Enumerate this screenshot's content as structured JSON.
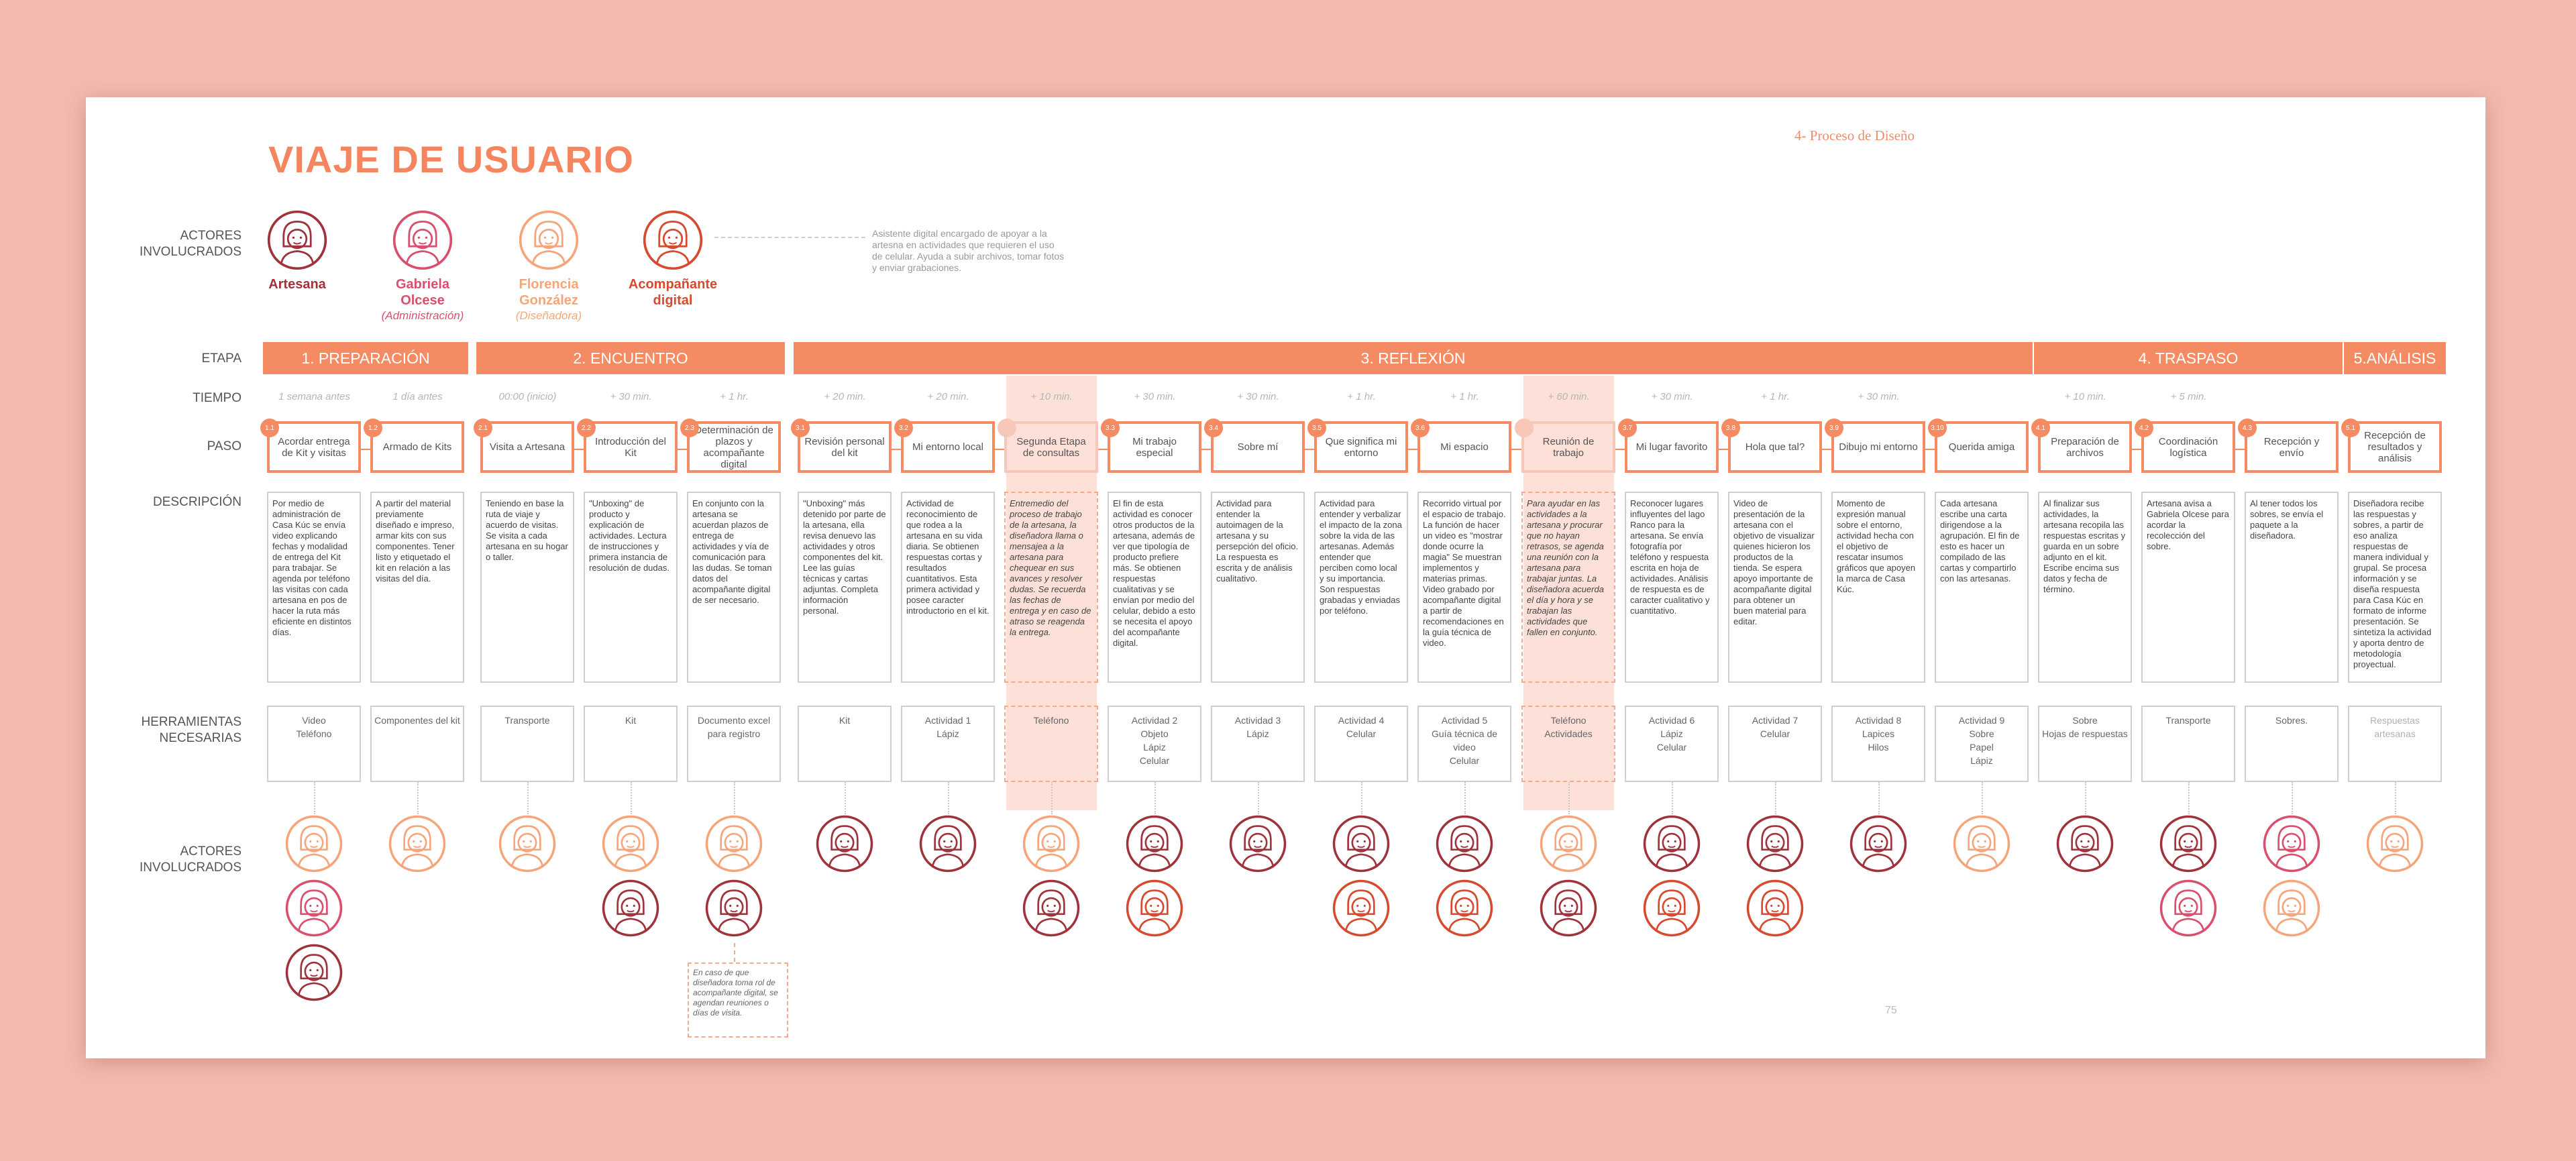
{
  "title": "VIAJE DE USUARIO",
  "section_header": "4- Proceso de Diseño",
  "page_number": "75",
  "labels": {
    "actors": "ACTORES\nINVOLUCRADOS",
    "stage": "ETAPA",
    "time": "TIEMPO",
    "step": "PASO",
    "description": "DESCRIPCIÓN",
    "tools": "HERRAMIENTAS\nNECESARIAS",
    "actors_bottom": "ACTORES\nINVOLUCRADOS"
  },
  "actors": [
    {
      "key": "artesana",
      "name": "Artesana",
      "role": "",
      "color": "#a0323c"
    },
    {
      "key": "gabriela",
      "name": "Gabriela\nOlcese",
      "role": "(Administración)",
      "color": "#d9506e"
    },
    {
      "key": "florencia",
      "name": "Florencia\nGonzález",
      "role": "(Diseñadora)",
      "color": "#f6a57a"
    },
    {
      "key": "acompanante",
      "name": "Acompañante\ndigital",
      "role": "",
      "color": "#d64a2f"
    }
  ],
  "actor_note": "Asistente digital encargado de apoyar a la artesna en actividades que requieren el uso de celular. Ayuda a subir archivos, tomar fotos y enviar grabaciones.",
  "stages": [
    "1. PREPARACIÓN",
    "2. ENCUENTRO",
    "3. REFLEXIÓN",
    "4. TRASPASO",
    "5.ANÁLISIS"
  ],
  "columns": [
    {
      "num": "1.1",
      "time": "1 semana antes",
      "step": "Acordar entrega de Kit y visitas",
      "desc": "Por medio de administración de Casa Kúc se envía video explicando fechas y modalidad de entrega del Kit para trabajar. Se agenda por teléfono las visitas con cada artesana en pos de hacer la ruta más eficiente en distintos días.",
      "tools": "Video\nTeléfono",
      "actors": [
        "florencia",
        "gabriela",
        "artesana"
      ]
    },
    {
      "num": "1.2",
      "time": "1 día antes",
      "step": "Armado de Kits",
      "desc": "A partir del material previamente diseñado e impreso, armar kits con sus componentes. Tener listo y etiquetado el kit en relación a las visitas del día.",
      "tools": "Componentes del kit",
      "actors": [
        "florencia"
      ]
    },
    {
      "num": "2.1",
      "time": "00:00 (inicio)",
      "step": "Visita a Artesana",
      "desc": "Teniendo en base la ruta de viaje y acuerdo de visitas. Se visita a cada artesana en su hogar o taller.",
      "tools": "Transporte",
      "actors": [
        "florencia"
      ]
    },
    {
      "num": "2.2",
      "time": "+ 30 min.",
      "step": "Introducción del Kit",
      "desc": "\"Unboxing\" de producto y explicación de actividades. Lectura de instrucciones y primera instancia de resolución de dudas.",
      "tools": "Kit",
      "actors": [
        "florencia",
        "artesana"
      ]
    },
    {
      "num": "2.3",
      "time": "+ 1 hr.",
      "step": "Determinación de plazos y acompañante digital",
      "desc": "En conjunto con la artesana se acuerdan plazos de entrega de actividades y vía de comunicación para las dudas. Se toman datos del acompañante digital de ser necesario.",
      "tools": "Documento excel para registro",
      "actors": [
        "florencia",
        "artesana"
      ],
      "dashedActor": true
    },
    {
      "num": "3.1",
      "time": "+ 20 min.",
      "step": "Revisión personal del kit",
      "desc": "\"Unboxing\" más detenido por parte de la artesana, ella revisa denuevo las actividades y otros componentes del kit. Lee las guías técnicas y cartas adjuntas. Completa información personal.",
      "tools": "Kit",
      "actors": [
        "artesana"
      ]
    },
    {
      "num": "3.2",
      "time": "+ 20 min.",
      "step": "Mi entorno local",
      "desc": "Actividad de reconocimiento de que rodea a la artesana en su vida diaria. Se obtienen respuestas cortas y resultados cuantitativos. Esta primera actividad y posee caracter introductorio en el kit.",
      "tools": "Actividad 1\nLápiz",
      "actors": [
        "artesana"
      ]
    },
    {
      "num": "",
      "time": "+ 10 min.",
      "step": "Segunda Etapa de consultas",
      "desc": "Entremedio del proceso de trabajo de la artesana, la diseñadora llama o mensajea a la artesana para chequear en sus avances y resolver dudas. Se recuerda las fechas de entrega y en caso de atraso se reagenda la entrega.",
      "tools": "Teléfono",
      "actors": [
        "florencia",
        "artesana"
      ],
      "light": true
    },
    {
      "num": "3.3",
      "time": "+ 30 min.",
      "step": "Mi trabajo especial",
      "desc": "El fin de esta actividad es conocer otros productos de la artesana, además de ver que tipología de producto prefiere más. Se obtienen respuestas cualitativas y se envían por medio del celular, debido a esto se necesita el apoyo del acompañante digital.",
      "tools": "Actividad 2\nObjeto\nLápiz\nCelular",
      "actors": [
        "artesana",
        "acompanante"
      ]
    },
    {
      "num": "3.4",
      "time": "+ 30 min.",
      "step": "Sobre mí",
      "desc": "Actividad para entender la autoimagen de la artesana y su persepción del oficio. La respuesta es escrita y de análisis cualitativo.",
      "tools": "Actividad 3\nLápiz",
      "actors": [
        "artesana"
      ]
    },
    {
      "num": "3.5",
      "time": "+ 1 hr.",
      "step": "Que significa mi entorno",
      "desc": "Actividad para entender y verbalizar el impacto de la zona sobre la vida de las artesanas. Además entender que perciben como local y su importancia. Son respuestas grabadas y enviadas por teléfono.",
      "tools": "Actividad 4\nCelular",
      "actors": [
        "artesana",
        "acompanante"
      ]
    },
    {
      "num": "3.6",
      "time": "+ 1 hr.",
      "step": "Mi espacio",
      "desc": "Recorrido virtual por el espacio de trabajo. La función de hacer un video es \"mostrar donde ocurre la magia\" Se muestran implementos y materias primas. Video grabado por acompañante digital a partir de recomendaciones en la guía técnica de video.",
      "tools": "Actividad 5\nGuía técnica de video\nCelular",
      "actors": [
        "artesana",
        "acompanante"
      ]
    },
    {
      "num": "",
      "time": "+ 60 min.",
      "step": "Reunión de trabajo",
      "desc": "Para ayudar en las actividades a la artesana y procurar que no hayan retrasos, se agenda una reunión con la artesana para trabajar juntas. La diseñadora acuerda el día y hora y se trabajan las actividades que fallen en conjunto.",
      "tools": "Teléfono\nActividades",
      "actors": [
        "florencia",
        "artesana"
      ],
      "light": true
    },
    {
      "num": "3.7",
      "time": "+ 30 min.",
      "step": "Mi lugar favorito",
      "desc": "Reconocer lugares influyentes del lago Ranco para la artesana. Se envía fotografía por teléfono y respuesta escrita en hoja de actividades. Análisis de respuesta es de caracter cualitativo y cuantitativo.",
      "tools": "Actividad 6\nLápiz\nCelular",
      "actors": [
        "artesana",
        "acompanante"
      ]
    },
    {
      "num": "3.8",
      "time": "+ 1 hr.",
      "step": "Hola que tal?",
      "desc": "Video de presentación de la artesana con el objetivo de visualizar quienes hicieron los productos de la tienda. Se espera apoyo importante de acompañante digital para obtener un buen material para editar.",
      "tools": "Actividad 7\nCelular",
      "actors": [
        "artesana",
        "acompanante"
      ]
    },
    {
      "num": "3.9",
      "time": "+ 30 min.",
      "step": "Dibujo mi entorno",
      "desc": "Momento de expresión manual sobre el entorno, actividad hecha con el objetivo de rescatar insumos gráficos que apoyen la marca de Casa Kúc.",
      "tools": "Actividad 8\nLapices\nHilos",
      "actors": [
        "artesana"
      ]
    },
    {
      "num": "3.10",
      "time": "",
      "step": "Querida amiga",
      "desc": "Cada artesana escribe una carta dirigendose a la agrupación. El fin de esto es hacer un compilado de las cartas y compartirlo con las artesanas.",
      "tools": "Actividad 9\nSobre\nPapel\nLápiz",
      "actors": [
        "florencia"
      ]
    },
    {
      "num": "4.1",
      "time": "+ 10 min.",
      "step": "Preparación de archivos",
      "desc": "Al finalizar sus actividades, la artesana recopila las respuestas escritas y guarda en un sobre adjunto en el kit. Escribe encima sus datos y fecha de término.",
      "tools": "Sobre\nHojas de respuestas",
      "actors": [
        "artesana"
      ]
    },
    {
      "num": "4.2",
      "time": "+ 5 min.",
      "step": "Coordinación logística",
      "desc": "Artesana avisa a Gabriela Olcese para acordar la recolección del sobre.",
      "tools": "Transporte",
      "actors": [
        "artesana",
        "gabriela"
      ]
    },
    {
      "num": "4.3",
      "time": "",
      "step": "Recepción y envío",
      "desc": "Al tener todos los sobres, se envía el paquete a la diseñadora.",
      "tools": "Sobres.",
      "actors": [
        "gabriela",
        "florencia"
      ]
    },
    {
      "num": "5.1",
      "time": "",
      "step": "Recepción de resultados y análisis",
      "desc": "Diseñadora recibe las respuestas y sobres, a partir de eso analiza respuestas de manera individual y grupal. Se procesa información y se diseña respuesta para Casa Kúc en formato de informe presentación. Se sintetiza la actividad y aporta dentro de metodología proyectual.",
      "tools": "Respuestas artesanas",
      "actors": [
        "florencia"
      ],
      "mutedTools": true
    }
  ],
  "footnote": "En caso de que diseñadora toma rol de acompañante digital, se agendan reuniones o días de visita."
}
